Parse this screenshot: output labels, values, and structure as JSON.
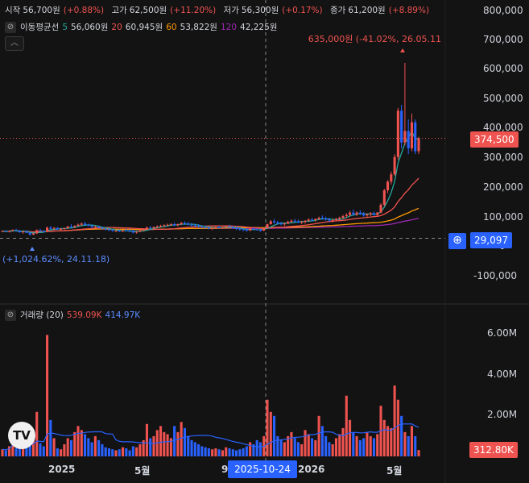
{
  "ohlc": {
    "open_label": "시작",
    "open_value": "56,700원",
    "open_change": "(+0.88%)",
    "high_label": "고가",
    "high_value": "62,500원",
    "high_change": "(+11.20%)",
    "low_label": "저가",
    "low_value": "56,300원",
    "low_change": "(+0.17%)",
    "close_label": "종가",
    "close_value": "61,200원",
    "close_change": "(+8.89%)"
  },
  "ma": {
    "title": "이동평균선",
    "items": [
      {
        "period": "5",
        "value": "56,060원"
      },
      {
        "period": "20",
        "value": "60,945원"
      },
      {
        "period": "60",
        "value": "53,822원"
      },
      {
        "period": "120",
        "value": "42,225원"
      }
    ]
  },
  "volume": {
    "title": "거래량 (20)",
    "value1": "539.09K",
    "value2": "414.97K"
  },
  "annotations": {
    "high": "635,000원 (-41.02%, 26.05.11",
    "low": "(+1,024.62%, 24.11.18)"
  },
  "price_axis": [
    "800,000",
    "700,000",
    "600,000",
    "500,000",
    "400,000",
    "300,000",
    "200,000",
    "100,000",
    "0",
    "-100,000"
  ],
  "price_tags": {
    "last": "374,500",
    "crosshair": "29,097"
  },
  "volume_axis": [
    "6.00M",
    "4.00M",
    "2.00M"
  ],
  "volume_tag": "312.80K",
  "time_axis": [
    "2025",
    "5월",
    "9",
    "2026",
    "5월"
  ],
  "crosshair_date": "2025-10-24",
  "colors": {
    "up": "#ef5350",
    "down": "#2962ff",
    "ma5": "#26a69a",
    "ma20": "#ef5350",
    "ma60": "#ff9800",
    "ma120": "#9c27b0",
    "bg": "#131313"
  },
  "chart_data": {
    "type": "candlestick",
    "price_range": [
      -150000,
      820000
    ],
    "volume_range": [
      0,
      7000000
    ],
    "last_price": 374500,
    "crosshair_price": 29097,
    "annotated_high": {
      "price": 635000,
      "date": "26.05.11"
    },
    "annotated_low": {
      "date": "24.11.18"
    },
    "candles": [
      {
        "o": 52000,
        "h": 56000,
        "l": 50000,
        "c": 54000,
        "v": 350000
      },
      {
        "o": 54000,
        "h": 57000,
        "l": 51000,
        "c": 52000,
        "v": 300000
      },
      {
        "o": 52000,
        "h": 56000,
        "l": 49000,
        "c": 55000,
        "v": 500000
      },
      {
        "o": 55000,
        "h": 60000,
        "l": 53000,
        "c": 58000,
        "v": 1100000
      },
      {
        "o": 58000,
        "h": 62000,
        "l": 54000,
        "c": 55000,
        "v": 400000
      },
      {
        "o": 55000,
        "h": 58000,
        "l": 48000,
        "c": 50000,
        "v": 450000
      },
      {
        "o": 50000,
        "h": 55000,
        "l": 45000,
        "c": 53000,
        "v": 600000
      },
      {
        "o": 53000,
        "h": 56000,
        "l": 47000,
        "c": 48000,
        "v": 900000
      },
      {
        "o": 48000,
        "h": 52000,
        "l": 38000,
        "c": 42000,
        "v": 700000
      },
      {
        "o": 42000,
        "h": 48000,
        "l": 40000,
        "c": 46000,
        "v": 800000
      },
      {
        "o": 46000,
        "h": 60000,
        "l": 44000,
        "c": 57000,
        "v": 2200000
      },
      {
        "o": 57000,
        "h": 62000,
        "l": 52000,
        "c": 54000,
        "v": 650000
      },
      {
        "o": 54000,
        "h": 58000,
        "l": 50000,
        "c": 52000,
        "v": 500000
      },
      {
        "o": 52000,
        "h": 70000,
        "l": 51000,
        "c": 66000,
        "v": 6000000
      },
      {
        "o": 66000,
        "h": 72000,
        "l": 60000,
        "c": 62000,
        "v": 1800000
      },
      {
        "o": 62000,
        "h": 68000,
        "l": 58000,
        "c": 65000,
        "v": 900000
      },
      {
        "o": 65000,
        "h": 68000,
        "l": 58000,
        "c": 60000,
        "v": 400000
      },
      {
        "o": 60000,
        "h": 64000,
        "l": 56000,
        "c": 62000,
        "v": 350000
      },
      {
        "o": 62000,
        "h": 66000,
        "l": 58000,
        "c": 64000,
        "v": 600000
      },
      {
        "o": 64000,
        "h": 72000,
        "l": 62000,
        "c": 70000,
        "v": 900000
      },
      {
        "o": 70000,
        "h": 78000,
        "l": 66000,
        "c": 68000,
        "v": 800000
      },
      {
        "o": 68000,
        "h": 74000,
        "l": 64000,
        "c": 72000,
        "v": 1200000
      },
      {
        "o": 72000,
        "h": 80000,
        "l": 70000,
        "c": 76000,
        "v": 1500000
      },
      {
        "o": 76000,
        "h": 84000,
        "l": 72000,
        "c": 80000,
        "v": 1300000
      },
      {
        "o": 80000,
        "h": 86000,
        "l": 74000,
        "c": 76000,
        "v": 1100000
      },
      {
        "o": 76000,
        "h": 80000,
        "l": 70000,
        "c": 73000,
        "v": 900000
      },
      {
        "o": 73000,
        "h": 76000,
        "l": 66000,
        "c": 68000,
        "v": 700000
      },
      {
        "o": 68000,
        "h": 72000,
        "l": 62000,
        "c": 70000,
        "v": 1000000
      },
      {
        "o": 70000,
        "h": 74000,
        "l": 64000,
        "c": 66000,
        "v": 800000
      },
      {
        "o": 66000,
        "h": 70000,
        "l": 60000,
        "c": 62000,
        "v": 600000
      },
      {
        "o": 62000,
        "h": 66000,
        "l": 56000,
        "c": 60000,
        "v": 450000
      },
      {
        "o": 60000,
        "h": 64000,
        "l": 54000,
        "c": 58000,
        "v": 400000
      },
      {
        "o": 58000,
        "h": 62000,
        "l": 52000,
        "c": 55000,
        "v": 350000
      },
      {
        "o": 55000,
        "h": 59000,
        "l": 50000,
        "c": 56000,
        "v": 300000
      },
      {
        "o": 56000,
        "h": 60000,
        "l": 51000,
        "c": 53000,
        "v": 350000
      },
      {
        "o": 53000,
        "h": 58000,
        "l": 50000,
        "c": 57000,
        "v": 450000
      },
      {
        "o": 57000,
        "h": 62000,
        "l": 53000,
        "c": 55000,
        "v": 400000
      },
      {
        "o": 55000,
        "h": 60000,
        "l": 50000,
        "c": 54000,
        "v": 300000
      },
      {
        "o": 54000,
        "h": 58000,
        "l": 46000,
        "c": 49000,
        "v": 500000
      },
      {
        "o": 49000,
        "h": 54000,
        "l": 45000,
        "c": 52000,
        "v": 450000
      },
      {
        "o": 52000,
        "h": 58000,
        "l": 50000,
        "c": 56000,
        "v": 600000
      },
      {
        "o": 56000,
        "h": 64000,
        "l": 54000,
        "c": 62000,
        "v": 800000
      },
      {
        "o": 62000,
        "h": 70000,
        "l": 58000,
        "c": 66000,
        "v": 1600000
      },
      {
        "o": 66000,
        "h": 72000,
        "l": 62000,
        "c": 64000,
        "v": 900000
      },
      {
        "o": 64000,
        "h": 70000,
        "l": 60000,
        "c": 68000,
        "v": 1000000
      },
      {
        "o": 68000,
        "h": 74000,
        "l": 64000,
        "c": 70000,
        "v": 1300000
      },
      {
        "o": 70000,
        "h": 76000,
        "l": 66000,
        "c": 72000,
        "v": 1500000
      },
      {
        "o": 72000,
        "h": 78000,
        "l": 68000,
        "c": 74000,
        "v": 1200000
      },
      {
        "o": 74000,
        "h": 80000,
        "l": 70000,
        "c": 76000,
        "v": 1100000
      },
      {
        "o": 76000,
        "h": 82000,
        "l": 72000,
        "c": 78000,
        "v": 900000
      },
      {
        "o": 78000,
        "h": 84000,
        "l": 72000,
        "c": 74000,
        "v": 1500000
      },
      {
        "o": 74000,
        "h": 80000,
        "l": 70000,
        "c": 78000,
        "v": 1200000
      },
      {
        "o": 78000,
        "h": 86000,
        "l": 74000,
        "c": 82000,
        "v": 1700000
      },
      {
        "o": 82000,
        "h": 88000,
        "l": 76000,
        "c": 80000,
        "v": 1400000
      },
      {
        "o": 80000,
        "h": 86000,
        "l": 74000,
        "c": 76000,
        "v": 1000000
      },
      {
        "o": 76000,
        "h": 82000,
        "l": 70000,
        "c": 74000,
        "v": 800000
      },
      {
        "o": 74000,
        "h": 80000,
        "l": 68000,
        "c": 72000,
        "v": 700000
      },
      {
        "o": 72000,
        "h": 78000,
        "l": 66000,
        "c": 70000,
        "v": 600000
      },
      {
        "o": 70000,
        "h": 74000,
        "l": 64000,
        "c": 68000,
        "v": 500000
      },
      {
        "o": 68000,
        "h": 72000,
        "l": 62000,
        "c": 66000,
        "v": 450000
      },
      {
        "o": 66000,
        "h": 70000,
        "l": 60000,
        "c": 64000,
        "v": 400000
      },
      {
        "o": 64000,
        "h": 68000,
        "l": 58000,
        "c": 66000,
        "v": 350000
      },
      {
        "o": 66000,
        "h": 70000,
        "l": 62000,
        "c": 68000,
        "v": 400000
      },
      {
        "o": 68000,
        "h": 72000,
        "l": 64000,
        "c": 66000,
        "v": 350000
      },
      {
        "o": 66000,
        "h": 70000,
        "l": 62000,
        "c": 68000,
        "v": 300000
      },
      {
        "o": 68000,
        "h": 74000,
        "l": 64000,
        "c": 70000,
        "v": 450000
      },
      {
        "o": 70000,
        "h": 76000,
        "l": 66000,
        "c": 68000,
        "v": 400000
      },
      {
        "o": 68000,
        "h": 72000,
        "l": 62000,
        "c": 64000,
        "v": 350000
      },
      {
        "o": 64000,
        "h": 68000,
        "l": 58000,
        "c": 62000,
        "v": 300000
      },
      {
        "o": 62000,
        "h": 66000,
        "l": 56000,
        "c": 60000,
        "v": 350000
      },
      {
        "o": 60000,
        "h": 64000,
        "l": 54000,
        "c": 58000,
        "v": 400000
      },
      {
        "o": 58000,
        "h": 62000,
        "l": 52000,
        "c": 56000,
        "v": 500000
      },
      {
        "o": 56000,
        "h": 64000,
        "l": 54000,
        "c": 62000,
        "v": 700000
      },
      {
        "o": 62000,
        "h": 66000,
        "l": 58000,
        "c": 60000,
        "v": 600000
      },
      {
        "o": 60000,
        "h": 64000,
        "l": 56000,
        "c": 58000,
        "v": 800000
      },
      {
        "o": 58000,
        "h": 62000,
        "l": 52000,
        "c": 56000,
        "v": 700000
      },
      {
        "o": 56000,
        "h": 66000,
        "l": 54000,
        "c": 64000,
        "v": 1000000
      },
      {
        "o": 64000,
        "h": 80000,
        "l": 62000,
        "c": 78000,
        "v": 2800000
      },
      {
        "o": 78000,
        "h": 92000,
        "l": 76000,
        "c": 88000,
        "v": 2200000
      },
      {
        "o": 88000,
        "h": 96000,
        "l": 80000,
        "c": 84000,
        "v": 2000000
      },
      {
        "o": 84000,
        "h": 90000,
        "l": 76000,
        "c": 80000,
        "v": 1000000
      },
      {
        "o": 80000,
        "h": 86000,
        "l": 74000,
        "c": 78000,
        "v": 800000
      },
      {
        "o": 78000,
        "h": 84000,
        "l": 72000,
        "c": 80000,
        "v": 700000
      },
      {
        "o": 80000,
        "h": 90000,
        "l": 78000,
        "c": 86000,
        "v": 1000000
      },
      {
        "o": 86000,
        "h": 94000,
        "l": 82000,
        "c": 90000,
        "v": 1200000
      },
      {
        "o": 90000,
        "h": 96000,
        "l": 84000,
        "c": 88000,
        "v": 900000
      },
      {
        "o": 88000,
        "h": 94000,
        "l": 82000,
        "c": 84000,
        "v": 700000
      },
      {
        "o": 84000,
        "h": 90000,
        "l": 78000,
        "c": 86000,
        "v": 600000
      },
      {
        "o": 86000,
        "h": 92000,
        "l": 80000,
        "c": 90000,
        "v": 1300000
      },
      {
        "o": 90000,
        "h": 98000,
        "l": 86000,
        "c": 94000,
        "v": 1100000
      },
      {
        "o": 94000,
        "h": 100000,
        "l": 88000,
        "c": 92000,
        "v": 900000
      },
      {
        "o": 92000,
        "h": 98000,
        "l": 86000,
        "c": 96000,
        "v": 800000
      },
      {
        "o": 96000,
        "h": 104000,
        "l": 92000,
        "c": 100000,
        "v": 2000000
      },
      {
        "o": 100000,
        "h": 108000,
        "l": 94000,
        "c": 98000,
        "v": 1500000
      },
      {
        "o": 98000,
        "h": 104000,
        "l": 90000,
        "c": 94000,
        "v": 1000000
      },
      {
        "o": 94000,
        "h": 100000,
        "l": 86000,
        "c": 90000,
        "v": 700000
      },
      {
        "o": 90000,
        "h": 96000,
        "l": 84000,
        "c": 92000,
        "v": 600000
      },
      {
        "o": 92000,
        "h": 100000,
        "l": 88000,
        "c": 96000,
        "v": 900000
      },
      {
        "o": 96000,
        "h": 104000,
        "l": 90000,
        "c": 100000,
        "v": 1100000
      },
      {
        "o": 100000,
        "h": 110000,
        "l": 96000,
        "c": 106000,
        "v": 1400000
      },
      {
        "o": 106000,
        "h": 116000,
        "l": 100000,
        "c": 110000,
        "v": 3000000
      },
      {
        "o": 110000,
        "h": 124000,
        "l": 104000,
        "c": 118000,
        "v": 1800000
      },
      {
        "o": 118000,
        "h": 128000,
        "l": 108000,
        "c": 112000,
        "v": 1200000
      },
      {
        "o": 112000,
        "h": 122000,
        "l": 106000,
        "c": 118000,
        "v": 1000000
      },
      {
        "o": 118000,
        "h": 126000,
        "l": 110000,
        "c": 114000,
        "v": 800000
      },
      {
        "o": 114000,
        "h": 120000,
        "l": 104000,
        "c": 108000,
        "v": 900000
      },
      {
        "o": 108000,
        "h": 116000,
        "l": 100000,
        "c": 112000,
        "v": 1200000
      },
      {
        "o": 112000,
        "h": 120000,
        "l": 106000,
        "c": 116000,
        "v": 1000000
      },
      {
        "o": 116000,
        "h": 122000,
        "l": 108000,
        "c": 110000,
        "v": 900000
      },
      {
        "o": 110000,
        "h": 120000,
        "l": 106000,
        "c": 118000,
        "v": 1100000
      },
      {
        "o": 118000,
        "h": 150000,
        "l": 116000,
        "c": 145000,
        "v": 2500000
      },
      {
        "o": 145000,
        "h": 200000,
        "l": 140000,
        "c": 195000,
        "v": 1800000
      },
      {
        "o": 195000,
        "h": 230000,
        "l": 185000,
        "c": 225000,
        "v": 1500000
      },
      {
        "o": 225000,
        "h": 260000,
        "l": 215000,
        "c": 250000,
        "v": 1400000
      },
      {
        "o": 250000,
        "h": 320000,
        "l": 245000,
        "c": 310000,
        "v": 3500000
      },
      {
        "o": 310000,
        "h": 480000,
        "l": 300000,
        "c": 470000,
        "v": 2800000
      },
      {
        "o": 470000,
        "h": 490000,
        "l": 340000,
        "c": 360000,
        "v": 2000000
      },
      {
        "o": 360000,
        "h": 635000,
        "l": 350000,
        "c": 400000,
        "v": 1200000
      },
      {
        "o": 400000,
        "h": 440000,
        "l": 320000,
        "c": 340000,
        "v": 1000000
      },
      {
        "o": 340000,
        "h": 460000,
        "l": 330000,
        "c": 430000,
        "v": 1500000
      },
      {
        "o": 430000,
        "h": 440000,
        "l": 320000,
        "c": 330000,
        "v": 1000000
      },
      {
        "o": 330000,
        "h": 380000,
        "l": 320000,
        "c": 374500,
        "v": 312800
      }
    ]
  }
}
